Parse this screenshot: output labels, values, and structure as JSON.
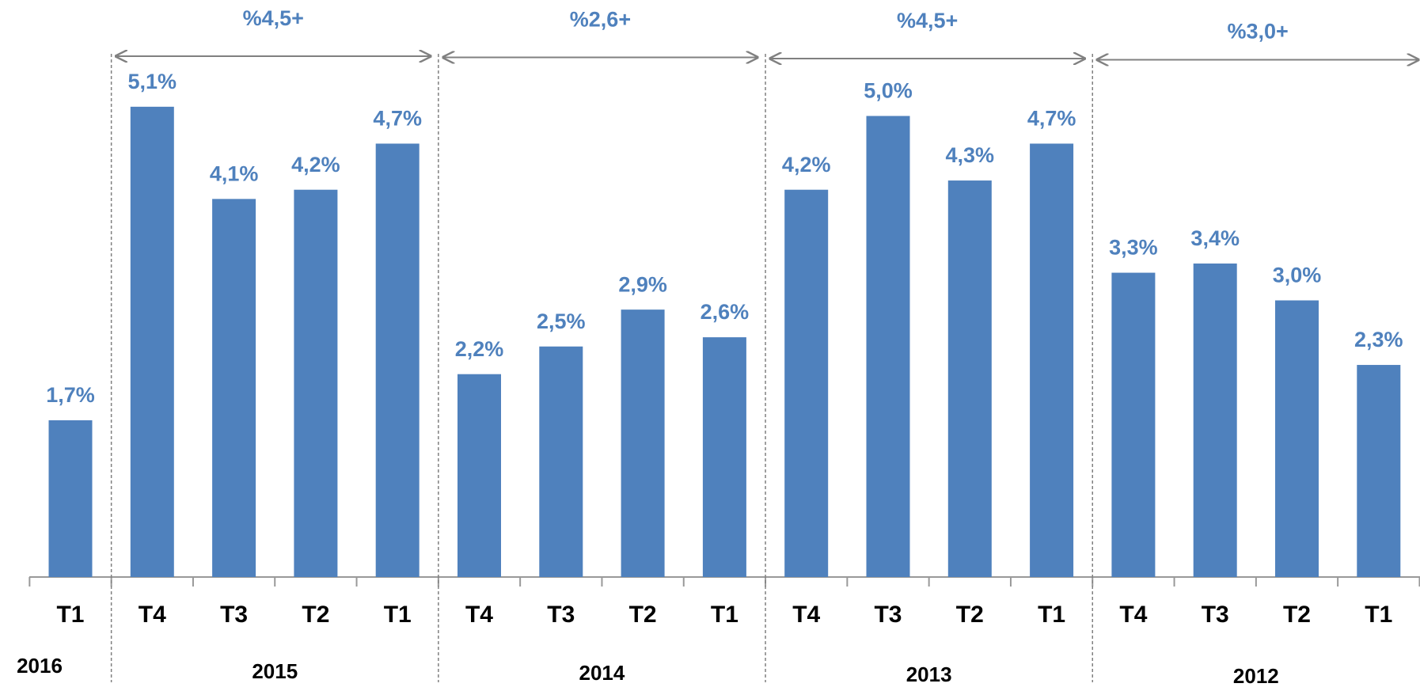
{
  "chart_data": {
    "type": "bar",
    "color": "#4f81bd",
    "groups": [
      {
        "name": "2016",
        "categories": [
          "T1"
        ],
        "values": [
          1.7
        ],
        "value_labels": [
          "1,7%"
        ]
      },
      {
        "name": "2015",
        "annotation": "%4,5+",
        "categories": [
          "T4",
          "T3",
          "T2",
          "T1"
        ],
        "values": [
          5.1,
          4.1,
          4.2,
          4.7
        ],
        "value_labels": [
          "5,1%",
          "4,1%",
          "4,2%",
          "4,7%"
        ]
      },
      {
        "name": "2014",
        "annotation": "%2,6+",
        "categories": [
          "T4",
          "T3",
          "T2",
          "T1"
        ],
        "values": [
          2.2,
          2.5,
          2.9,
          2.6
        ],
        "value_labels": [
          "2,2%",
          "2,5%",
          "2,9%",
          "2,6%"
        ]
      },
      {
        "name": "2013",
        "annotation": "%4,5+",
        "categories": [
          "T4",
          "T3",
          "T2",
          "T1"
        ],
        "values": [
          4.2,
          5.0,
          4.3,
          4.7
        ],
        "value_labels": [
          "4,2%",
          "5,0%",
          "4,3%",
          "4,7%"
        ]
      },
      {
        "name": "2012",
        "annotation": "%3,0+",
        "categories": [
          "T4",
          "T3",
          "T2",
          "T1"
        ],
        "values": [
          3.3,
          3.4,
          3.0,
          2.3
        ],
        "value_labels": [
          "3,3%",
          "3,4%",
          "3,0%",
          "2,3%"
        ]
      }
    ]
  }
}
